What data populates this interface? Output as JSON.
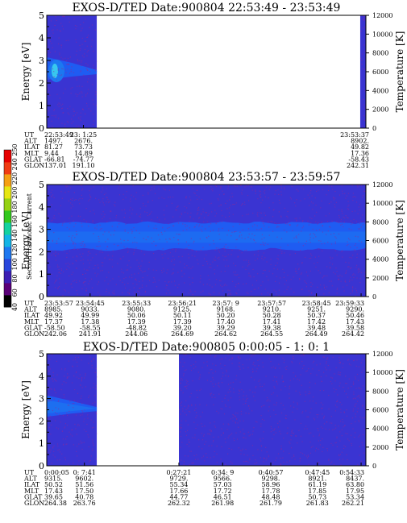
{
  "chart_data": [
    {
      "type": "heatmap",
      "title": "EXOS-D/TED   Date:900804  22:53:49 - 23:53:49",
      "ylabel": "Energy [eV]",
      "ylim": [
        0,
        5
      ],
      "yticks": [
        "0",
        "1",
        "2",
        "3",
        "4",
        "5"
      ],
      "right_axis_label": "Temperature [K]",
      "right_axis_range": [
        0,
        12000
      ],
      "right_ticks": [
        "0",
        "2000",
        "4000",
        "6000",
        "8000",
        "10000",
        "12000"
      ],
      "data_spans": [
        [
          0.0,
          0.157
        ],
        [
          0.982,
          1.0
        ]
      ],
      "background_color": "#3a34d2",
      "band": {
        "center_ev": 2.5,
        "top_ev": 3.0,
        "note": "bright patch near start"
      },
      "orbit_labels": [
        "UT",
        "ALT",
        "ILAT",
        "MLT",
        "GLAT",
        "GLON"
      ],
      "orbit_columns": [
        {
          "pos": 0.0,
          "values": [
            "22:53:49",
            "1497.",
            "81.27",
            "9.44",
            "-66.81",
            "137.01"
          ]
        },
        {
          "pos": 0.115,
          "values": [
            "23: 1:25",
            "2676.",
            "73.73",
            "14.89",
            "-74.77",
            "191.10"
          ]
        },
        {
          "pos": 1.0,
          "values": [
            "23:53:37",
            "8902.",
            "49.82",
            "17.36",
            "-58.43",
            "242.31"
          ]
        }
      ]
    },
    {
      "type": "heatmap",
      "title": "EXOS-D/TED   Date:900804  23:53:57 - 23:59:57",
      "ylabel": "Energy [eV]",
      "ylim": [
        0,
        5
      ],
      "yticks": [
        "0",
        "1",
        "2",
        "3",
        "4",
        "5"
      ],
      "right_axis_label": "Temperature [K]",
      "right_axis_range": [
        0,
        12000
      ],
      "right_ticks": [
        "0",
        "2000",
        "4000",
        "6000",
        "8000",
        "10000",
        "12000"
      ],
      "data_spans": [
        [
          0.0,
          1.0
        ]
      ],
      "background_color": "#3a34d2",
      "band": {
        "center_ev": 2.65,
        "low_ev": 2.1,
        "high_ev": 3.3
      },
      "orbit_labels": [
        "UT",
        "ALT",
        "ILAT",
        "MLT",
        "GLAT",
        "GLON"
      ],
      "orbit_columns": [
        {
          "pos": 0.0,
          "values": [
            "23:53:57",
            "8985.",
            "49.92",
            "17.37",
            "-58.50",
            "242.06"
          ]
        },
        {
          "pos": 0.136,
          "values": [
            "23:54:45",
            "9033.",
            "49.99",
            "17.38",
            "-58.55",
            "241.91"
          ]
        },
        {
          "pos": 0.281,
          "values": [
            "23:55:33",
            "9080.",
            "50.06",
            "17.39",
            "-48.82",
            "244.06"
          ]
        },
        {
          "pos": 0.425,
          "values": [
            "23:56:21",
            "9125.",
            "50.11",
            "17.39",
            "39.20",
            "264.69"
          ]
        },
        {
          "pos": 0.561,
          "values": [
            "23:57: 9",
            "9168.",
            "50.20",
            "17.40",
            "39.29",
            "264.62"
          ]
        },
        {
          "pos": 0.705,
          "values": [
            "23:57:57",
            "9210.",
            "50.28",
            "17.41",
            "39.38",
            "264.55"
          ]
        },
        {
          "pos": 0.845,
          "values": [
            "23:58:45",
            "9251.",
            "50.37",
            "17.42",
            "39.48",
            "264.49"
          ]
        },
        {
          "pos": 0.985,
          "values": [
            "23:59:33",
            "9290.",
            "50.46",
            "17.43",
            "39.58",
            "264.42"
          ]
        }
      ]
    },
    {
      "type": "heatmap",
      "title": "EXOS-D/TED   Date:900805  0:00:05 - 1: 0: 1",
      "ylabel": "Energy [eV]",
      "ylim": [
        0,
        5
      ],
      "yticks": [
        "0",
        "1",
        "2",
        "3",
        "4",
        "5"
      ],
      "right_axis_label": "Temperature [K]",
      "right_axis_range": [
        0,
        12000
      ],
      "right_ticks": [
        "0",
        "2000",
        "4000",
        "6000",
        "8000",
        "10000",
        "12000"
      ],
      "data_spans": [
        [
          0.0,
          0.157
        ],
        [
          0.414,
          1.0
        ]
      ],
      "background_color": "#3a34d2",
      "band": {
        "center_ev": 2.55,
        "top_ev": 3.0,
        "note": "first segment only"
      },
      "orbit_labels": [
        "UT",
        "ALT",
        "ILAT",
        "MLT",
        "GLAT",
        "GLON"
      ],
      "orbit_columns": [
        {
          "pos": 0.0,
          "values": [
            "0:00:05",
            "9315.",
            "50.52",
            "17.43",
            "39.65",
            "264.38"
          ]
        },
        {
          "pos": 0.118,
          "values": [
            "0: 7:41",
            "9602.",
            "51.56",
            "17.50",
            "40.78",
            "263.76"
          ]
        },
        {
          "pos": 0.414,
          "values": [
            "0:27:21",
            "9729.",
            "55.34",
            "17.66",
            "44.77",
            "262.32"
          ]
        },
        {
          "pos": 0.551,
          "values": [
            "0:34: 9",
            "9566.",
            "57.03",
            "17.72",
            "46.51",
            "261.98"
          ]
        },
        {
          "pos": 0.702,
          "values": [
            "0:40:57",
            "9298.",
            "58.96",
            "17.78",
            "48.48",
            "261.79"
          ]
        },
        {
          "pos": 0.848,
          "values": [
            "0:47:45",
            "8921.",
            "61.19",
            "17.85",
            "50.73",
            "261.83"
          ]
        },
        {
          "pos": 0.985,
          "values": [
            "0:54:33",
            "8437.",
            "63.80",
            "17.95",
            "53.34",
            "262.21"
          ]
        }
      ]
    }
  ],
  "colorbar": {
    "label": "Second Harmonic Current",
    "ticks": [
      "40",
      "60",
      "80",
      "100",
      "120",
      "140",
      "160",
      "180",
      "200",
      "220",
      "240",
      "250"
    ],
    "colors": [
      "#000000",
      "#5a0078",
      "#3c1eb4",
      "#2846dc",
      "#1e78f0",
      "#14b4e6",
      "#14d2a0",
      "#32c81e",
      "#96d214",
      "#e6e614",
      "#f5a014",
      "#f03c14",
      "#e60000"
    ]
  },
  "colors": {
    "background": "#3a34d2",
    "band": "#1f5cf2",
    "band_core": "#1c78f0",
    "hot_core": "#38c8ee",
    "speck_red": "#8a2a9a",
    "right_bar": "#3a34d2"
  }
}
